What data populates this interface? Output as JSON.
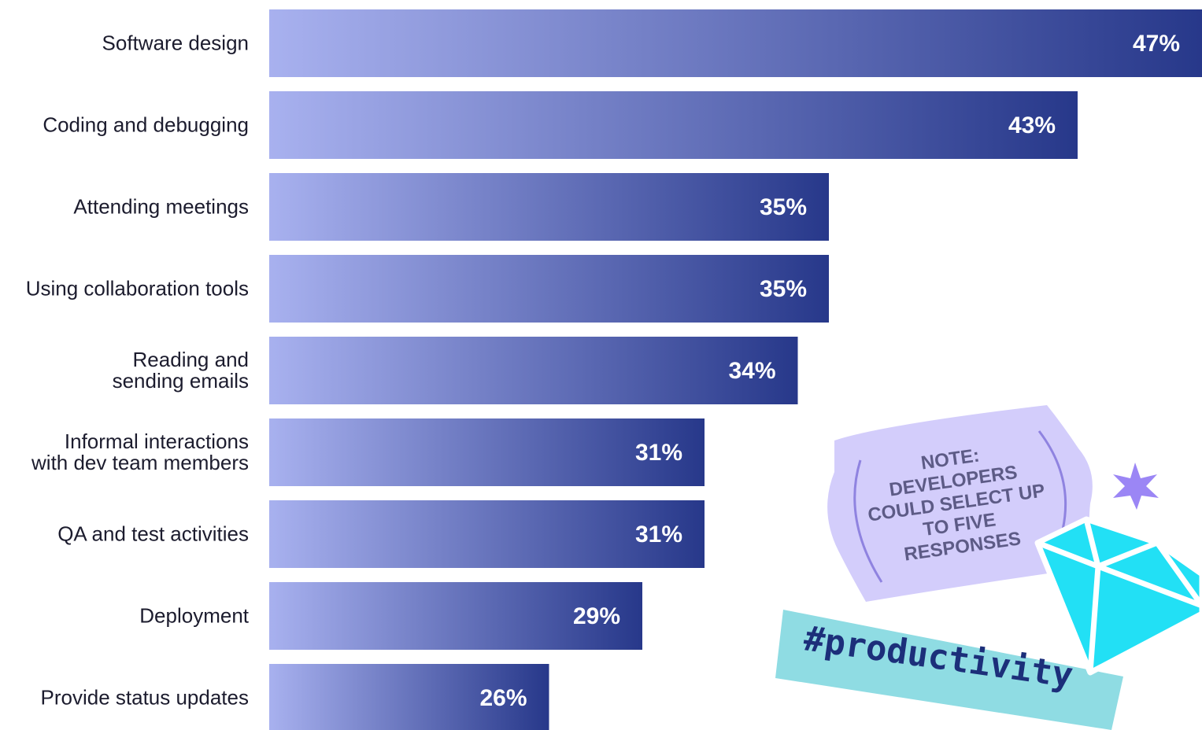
{
  "chart_data": {
    "type": "bar",
    "orientation": "horizontal",
    "categories": [
      "Software design",
      "Coding and debugging",
      "Attending meetings",
      "Using collaboration tools",
      "Reading and\nsending emails",
      "Informal interactions\nwith dev team members",
      "QA and test activities",
      "Deployment",
      "Provide status updates"
    ],
    "values": [
      47,
      43,
      35,
      35,
      34,
      31,
      31,
      29,
      26
    ],
    "value_labels": [
      "47%",
      "43%",
      "35%",
      "35%",
      "34%",
      "31%",
      "31%",
      "29%",
      "26%"
    ],
    "colors": [
      "#a8b1ef",
      "#27388a"
    ],
    "xlim": [
      17,
      47
    ],
    "annotations": [
      "NOTE:\nDEVELOPERS\nCOULD SELECT UP\nTO FIVE\nRESPONSES",
      "#productivity"
    ]
  }
}
